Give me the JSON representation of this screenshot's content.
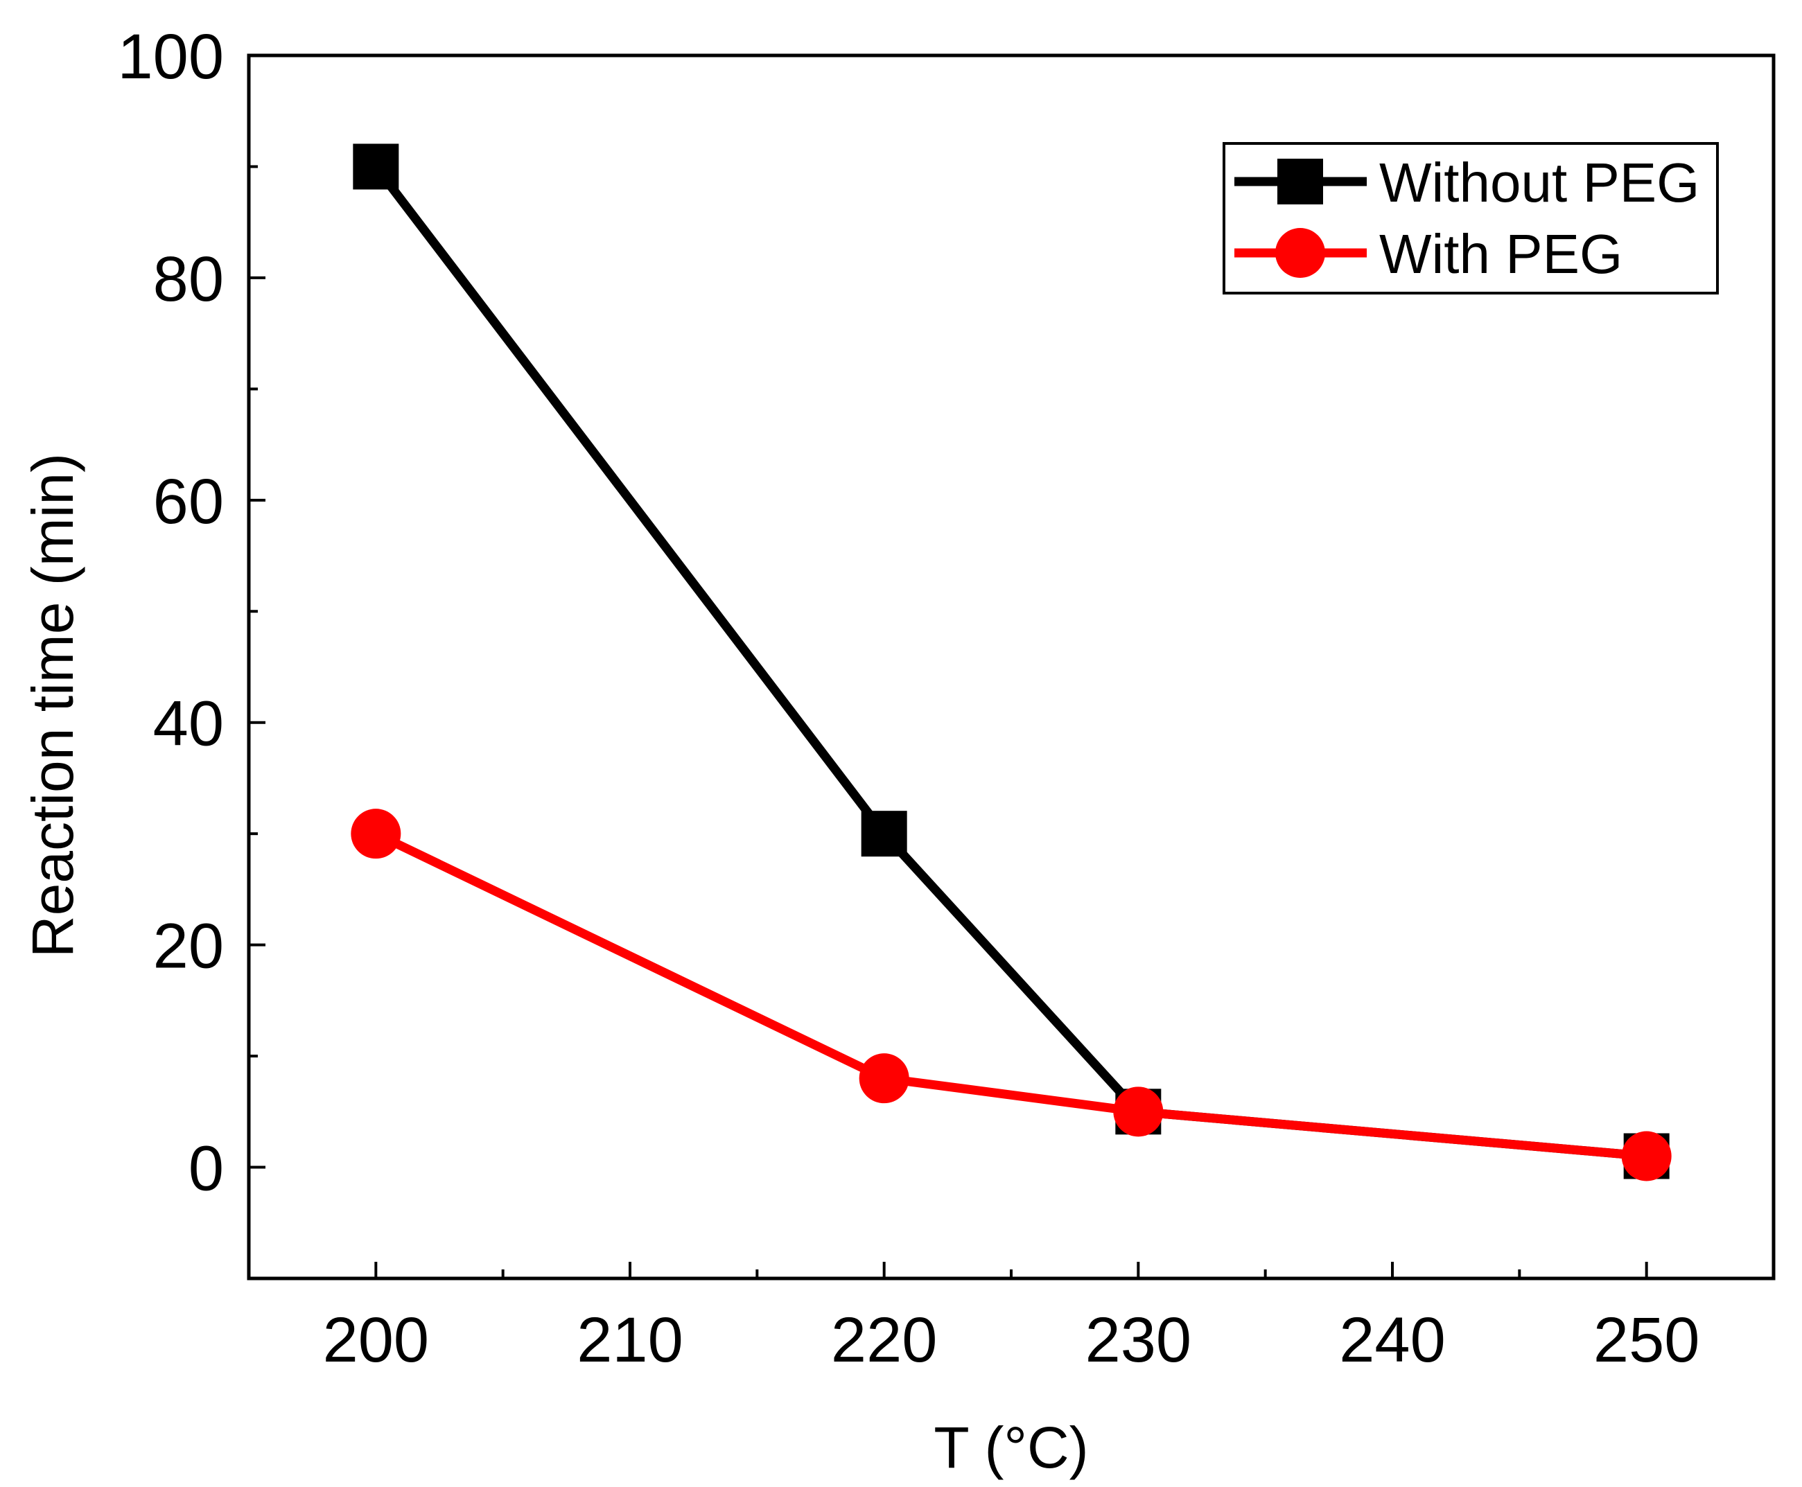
{
  "chart_data": {
    "type": "line",
    "title": "",
    "xlabel": "T (°C)",
    "ylabel": "Reaction time (min)",
    "xlim": [
      195,
      255
    ],
    "ylim": [
      -10,
      100
    ],
    "x_ticks": [
      200,
      210,
      220,
      230,
      240,
      250
    ],
    "x_minor_ticks": [
      205,
      215,
      225,
      235,
      245
    ],
    "y_ticks": [
      0,
      20,
      40,
      60,
      80,
      100
    ],
    "y_minor_ticks": [
      10,
      30,
      50,
      70,
      90
    ],
    "grid": false,
    "legend_position": "top-right",
    "series": [
      {
        "name": "Without PEG",
        "color": "#000000",
        "marker": "square",
        "x": [
          200,
          220,
          230,
          250
        ],
        "y": [
          90,
          30,
          5,
          1
        ]
      },
      {
        "name": "With PEG",
        "color": "#ff0000",
        "marker": "circle",
        "x": [
          200,
          220,
          230,
          250
        ],
        "y": [
          30,
          8,
          5,
          1
        ]
      }
    ]
  }
}
